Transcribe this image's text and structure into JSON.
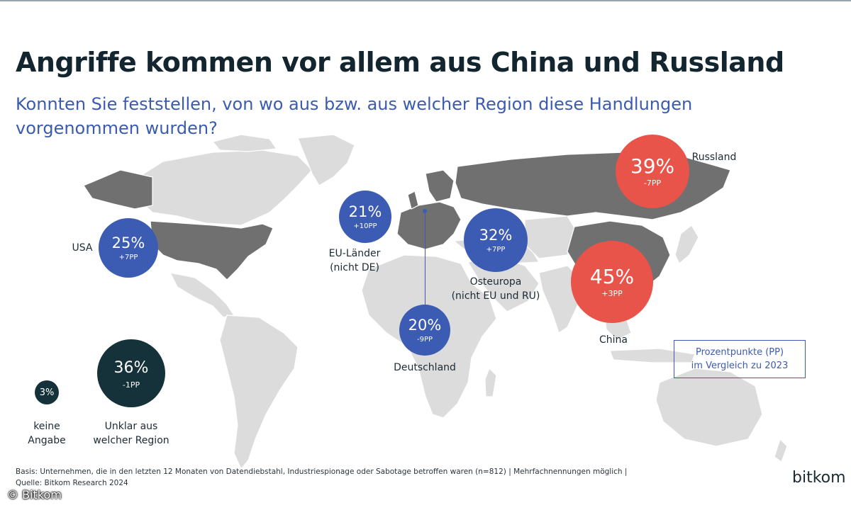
{
  "header": {
    "title": "Angriffe kommen vor allem aus China und Russland",
    "subtitle_line1": "Konnten Sie feststellen, von wo aus bzw. aus welcher Region diese Handlungen",
    "subtitle_line2": "vorgenommen wurden?"
  },
  "colors": {
    "accent_blue": "#3c5bb2",
    "accent_red": "#e8534a",
    "dark": "#15323a",
    "land": "#dcdcdc",
    "highlighted_land": "#707070"
  },
  "regions": {
    "usa": {
      "label": "USA",
      "value": "25%",
      "change": "+7PP"
    },
    "eu": {
      "label_line1": "EU-Länder",
      "label_line2": "(nicht DE)",
      "value": "21%",
      "change": "+10PP"
    },
    "osteuropa": {
      "label_line1": "Osteuropa",
      "label_line2": "(nicht EU und RU)",
      "value": "32%",
      "change": "+7PP"
    },
    "russland": {
      "label": "Russland",
      "value": "39%",
      "change": "-7PP"
    },
    "china": {
      "label": "China",
      "value": "45%",
      "change": "+3PP"
    },
    "deutschland": {
      "label": "Deutschland",
      "value": "20%",
      "change": "-9PP"
    },
    "unklar": {
      "label_line1": "Unklar aus",
      "label_line2": "welcher Region",
      "value": "36%",
      "change": "-1PP"
    },
    "keine_angabe": {
      "label_line1": "keine",
      "label_line2": "Angabe",
      "value": "3%"
    }
  },
  "legend": {
    "line1": "Prozentpunkte (PP)",
    "line2": "im Vergleich zu 2023"
  },
  "footer": {
    "basis": "Basis: Unternehmen, die in den letzten 12 Monaten von Datendiebstahl, Industriespionage oder Sabotage betroffen waren (n=812) | Mehrfachnennungen möglich |",
    "source": "Quelle: Bitkom Research 2024",
    "logo": "bitkom",
    "copyright": "© Bitkom"
  }
}
